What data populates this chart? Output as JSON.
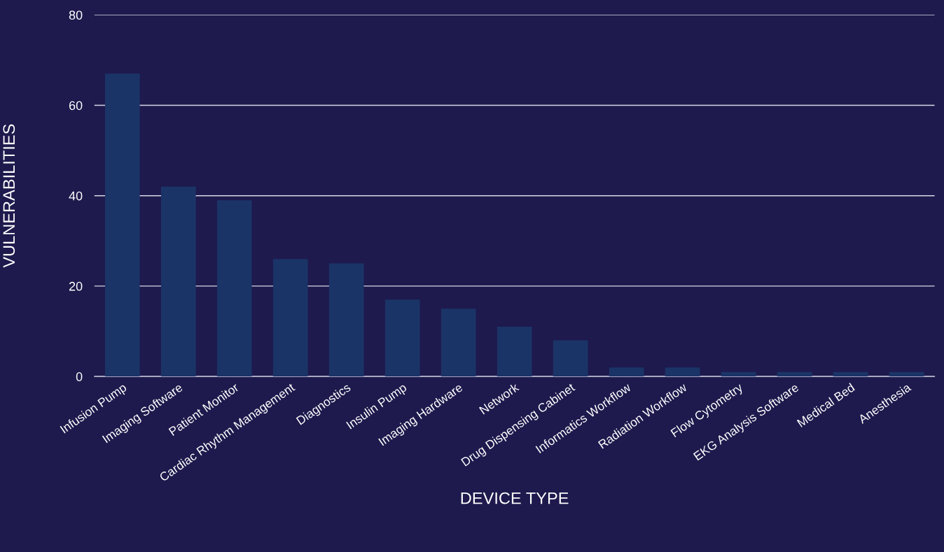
{
  "chart_data": {
    "type": "bar",
    "xlabel": "DEVICE TYPE",
    "ylabel": "VULNERABILITIES",
    "categories": [
      "Infusion Pump",
      "Imaging Software",
      "Patient Monitor",
      "Cardiac Rhythm Management",
      "Diagnostics",
      "Insulin Pump",
      "Imaging Hardware",
      "Network",
      "Drug Dispensing Cabinet",
      "Informatics Workflow",
      "Radiation Workflow",
      "Flow Cytometry",
      "EKG Analysis Software",
      "Medical Bed",
      "Anesthesia"
    ],
    "values": [
      67,
      42,
      39,
      26,
      25,
      17,
      15,
      11,
      8,
      2,
      2,
      1,
      1,
      1,
      1
    ],
    "color": "#1b3468",
    "ylim": [
      0,
      80
    ],
    "yticks": [
      0,
      20,
      40,
      60,
      80
    ],
    "grid": "y"
  }
}
